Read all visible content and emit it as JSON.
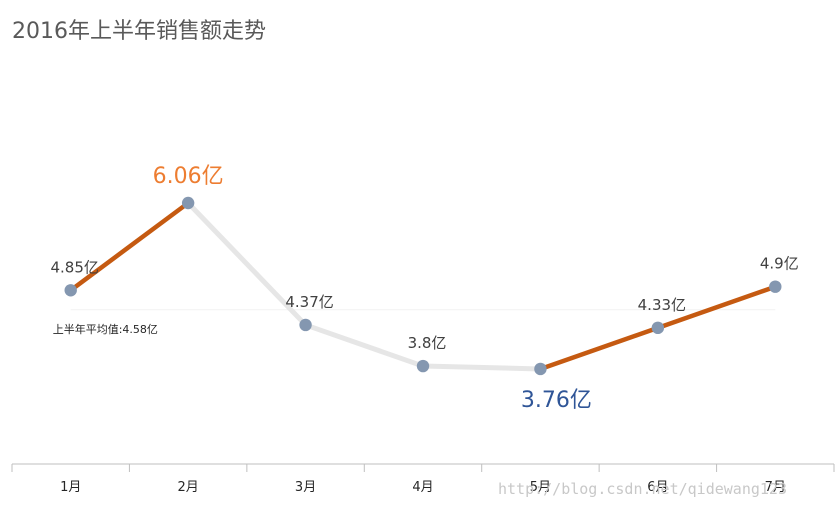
{
  "chart_data": {
    "type": "line",
    "title": "2016年上半年销售额走势",
    "categories": [
      "1月",
      "2月",
      "3月",
      "4月",
      "5月",
      "6月",
      "7月"
    ],
    "series": [
      {
        "values": [
          4.85,
          6.06,
          4.37,
          3.8,
          3.76,
          4.33,
          4.9
        ]
      }
    ],
    "data_labels": [
      "4.85亿",
      "6.06亿",
      "4.37亿",
      "3.8亿",
      "3.76亿",
      "4.33亿",
      "4.9亿"
    ],
    "reference_line": {
      "value": 4.58,
      "label": "上半年平均值:4.58亿"
    },
    "ylim": [
      3.0,
      6.5
    ],
    "grid": false,
    "highlight": {
      "max_index": 1,
      "min_index": 4
    },
    "rising_segments": [
      0,
      4,
      5
    ],
    "colors": {
      "rising": "#c55a11",
      "falling": "#e6e6e6",
      "marker": "#8497b0",
      "max_label": "#ed7d31",
      "min_label": "#2f5597",
      "label": "#404040",
      "title": "#595959",
      "axis": "#bfbfbf",
      "reference": "#f2f2f2"
    }
  },
  "watermark": "http://blog.csdn.net/qidewang123"
}
